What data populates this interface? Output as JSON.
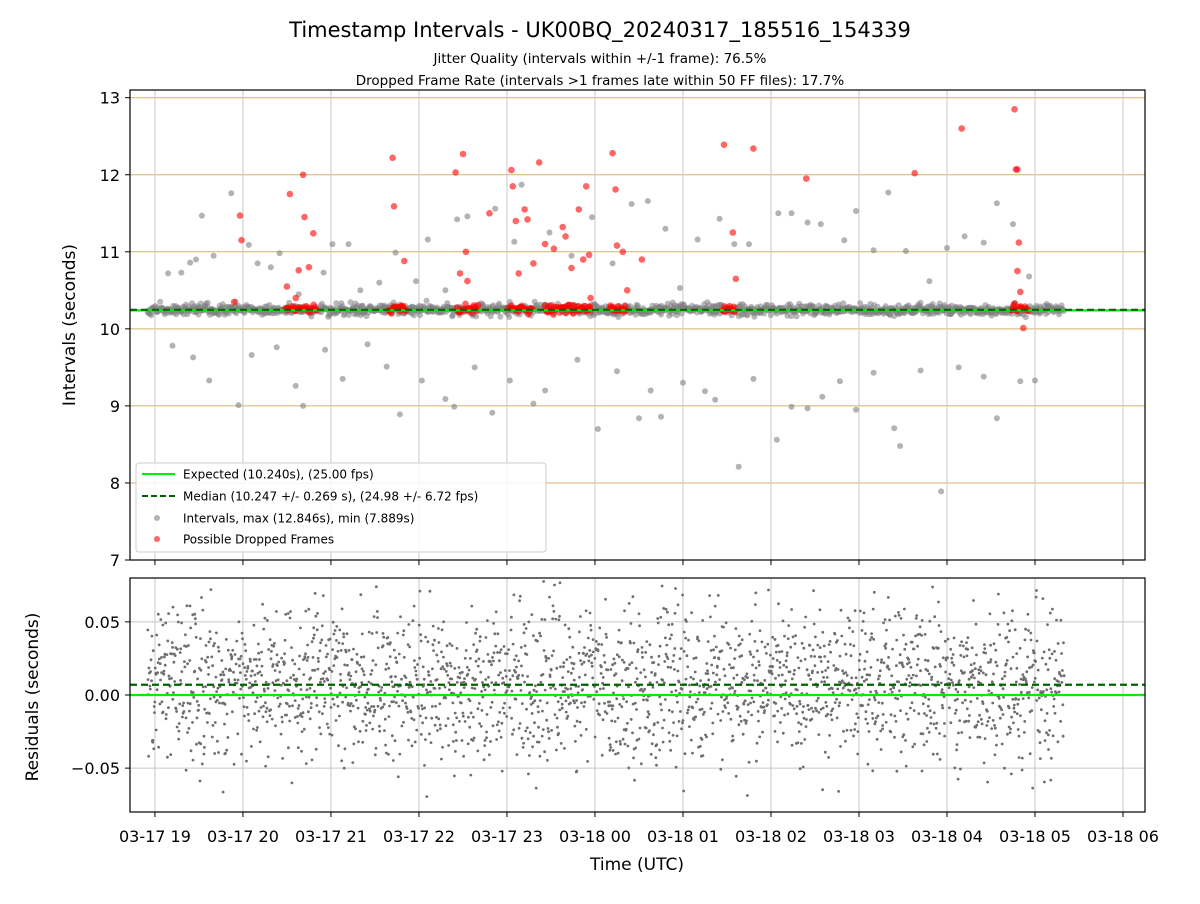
{
  "figure": {
    "title": "Timestamp Intervals - UK00BQ_20240317_185516_154339",
    "subtitle_1": "Jitter Quality (intervals within +/-1 frame): 76.5%",
    "subtitle_2": "Dropped Frame Rate (intervals >1 frames late within 50 FF files): 17.7%"
  },
  "colors": {
    "expected": "#00ee00",
    "median": "#006400",
    "intervals": "#808080",
    "dropped": "#ff0000",
    "frame_grid": "#d4b36a",
    "grid": "#c8c8c8"
  },
  "chart_data": [
    {
      "type": "scatter",
      "ylabel": "Intervals (seconds)",
      "ylim": [
        7,
        13.1
      ],
      "y_ticks": [
        7,
        8,
        9,
        10,
        11,
        12,
        13
      ],
      "xlim": [
        "2024-03-17T18:43",
        "2024-03-18T06:15"
      ],
      "grid": true,
      "legend_position": "lower-left",
      "expected_interval": 10.24,
      "median_interval": 10.247,
      "legend": [
        {
          "label": "Expected (10.240s), (25.00 fps)",
          "style": "solid-line",
          "color": "#00ee00"
        },
        {
          "label": "Median (10.247 +/- 0.269 s), (24.98 +/- 6.72 fps)",
          "style": "dashed-line",
          "color": "#006400"
        },
        {
          "label": "Intervals, max (12.846s), min (7.889s)",
          "style": "dot",
          "color": "#808080"
        },
        {
          "label": "Possible Dropped Frames",
          "style": "dot",
          "color": "#ff0000"
        }
      ],
      "series": [
        {
          "name": "Intervals, max (12.846s), min (7.889s)",
          "outliers": [
            {
              "x": "2024-03-17T19:09",
              "y": 10.72
            },
            {
              "x": "2024-03-17T19:18",
              "y": 10.73
            },
            {
              "x": "2024-03-17T19:24",
              "y": 10.86
            },
            {
              "x": "2024-03-17T19:28",
              "y": 10.9
            },
            {
              "x": "2024-03-17T19:32",
              "y": 11.47
            },
            {
              "x": "2024-03-17T19:40",
              "y": 10.95
            },
            {
              "x": "2024-03-17T19:52",
              "y": 11.76
            },
            {
              "x": "2024-03-17T19:55",
              "y": 10.35
            },
            {
              "x": "2024-03-17T20:04",
              "y": 11.09
            },
            {
              "x": "2024-03-17T20:10",
              "y": 10.85
            },
            {
              "x": "2024-03-17T20:19",
              "y": 10.8
            },
            {
              "x": "2024-03-17T20:25",
              "y": 10.98
            },
            {
              "x": "2024-03-17T20:38",
              "y": 10.45
            },
            {
              "x": "2024-03-17T20:55",
              "y": 10.73
            },
            {
              "x": "2024-03-17T21:01",
              "y": 11.1
            },
            {
              "x": "2024-03-17T21:12",
              "y": 11.1
            },
            {
              "x": "2024-03-17T21:20",
              "y": 10.5
            },
            {
              "x": "2024-03-17T21:33",
              "y": 10.6
            },
            {
              "x": "2024-03-17T21:44",
              "y": 10.99
            },
            {
              "x": "2024-03-17T21:58",
              "y": 10.62
            },
            {
              "x": "2024-03-17T22:06",
              "y": 11.16
            },
            {
              "x": "2024-03-17T22:18",
              "y": 10.5
            },
            {
              "x": "2024-03-17T22:26",
              "y": 11.42
            },
            {
              "x": "2024-03-17T22:33",
              "y": 11.46
            },
            {
              "x": "2024-03-17T22:52",
              "y": 11.56
            },
            {
              "x": "2024-03-17T23:05",
              "y": 11.13
            },
            {
              "x": "2024-03-17T23:10",
              "y": 11.87
            },
            {
              "x": "2024-03-17T23:29",
              "y": 11.25
            },
            {
              "x": "2024-03-17T23:44",
              "y": 10.95
            },
            {
              "x": "2024-03-17T23:58",
              "y": 11.45
            },
            {
              "x": "2024-03-18T00:12",
              "y": 10.85
            },
            {
              "x": "2024-03-18T00:25",
              "y": 11.62
            },
            {
              "x": "2024-03-18T00:36",
              "y": 11.66
            },
            {
              "x": "2024-03-18T00:48",
              "y": 11.3
            },
            {
              "x": "2024-03-18T00:58",
              "y": 10.53
            },
            {
              "x": "2024-03-18T01:10",
              "y": 11.16
            },
            {
              "x": "2024-03-18T01:25",
              "y": 11.43
            },
            {
              "x": "2024-03-18T01:35",
              "y": 11.1
            },
            {
              "x": "2024-03-18T01:45",
              "y": 11.1
            },
            {
              "x": "2024-03-18T02:05",
              "y": 11.5
            },
            {
              "x": "2024-03-18T02:14",
              "y": 11.5
            },
            {
              "x": "2024-03-18T02:25",
              "y": 11.38
            },
            {
              "x": "2024-03-18T02:34",
              "y": 11.36
            },
            {
              "x": "2024-03-18T02:50",
              "y": 11.15
            },
            {
              "x": "2024-03-18T02:58",
              "y": 11.53
            },
            {
              "x": "2024-03-18T03:10",
              "y": 11.02
            },
            {
              "x": "2024-03-18T03:20",
              "y": 11.77
            },
            {
              "x": "2024-03-18T03:32",
              "y": 11.01
            },
            {
              "x": "2024-03-18T03:48",
              "y": 10.62
            },
            {
              "x": "2024-03-18T04:00",
              "y": 11.05
            },
            {
              "x": "2024-03-18T04:12",
              "y": 11.2
            },
            {
              "x": "2024-03-18T04:25",
              "y": 11.12
            },
            {
              "x": "2024-03-18T04:34",
              "y": 11.63
            },
            {
              "x": "2024-03-18T04:45",
              "y": 11.36
            },
            {
              "x": "2024-03-18T04:56",
              "y": 10.68
            },
            {
              "x": "2024-03-17T19:12",
              "y": 9.78
            },
            {
              "x": "2024-03-17T19:26",
              "y": 9.63
            },
            {
              "x": "2024-03-17T19:37",
              "y": 9.33
            },
            {
              "x": "2024-03-17T19:57",
              "y": 9.01
            },
            {
              "x": "2024-03-17T20:06",
              "y": 9.66
            },
            {
              "x": "2024-03-17T20:23",
              "y": 9.76
            },
            {
              "x": "2024-03-17T20:36",
              "y": 9.26
            },
            {
              "x": "2024-03-17T20:41",
              "y": 9.0
            },
            {
              "x": "2024-03-17T20:56",
              "y": 9.73
            },
            {
              "x": "2024-03-17T21:08",
              "y": 9.35
            },
            {
              "x": "2024-03-17T21:25",
              "y": 9.8
            },
            {
              "x": "2024-03-17T21:38",
              "y": 9.51
            },
            {
              "x": "2024-03-17T21:47",
              "y": 8.89
            },
            {
              "x": "2024-03-17T22:02",
              "y": 9.33
            },
            {
              "x": "2024-03-17T22:18",
              "y": 9.09
            },
            {
              "x": "2024-03-17T22:24",
              "y": 8.99
            },
            {
              "x": "2024-03-17T22:38",
              "y": 9.5
            },
            {
              "x": "2024-03-17T22:50",
              "y": 8.91
            },
            {
              "x": "2024-03-17T23:02",
              "y": 9.33
            },
            {
              "x": "2024-03-17T23:18",
              "y": 9.03
            },
            {
              "x": "2024-03-17T23:26",
              "y": 9.2
            },
            {
              "x": "2024-03-17T23:48",
              "y": 9.6
            },
            {
              "x": "2024-03-18T00:02",
              "y": 8.7
            },
            {
              "x": "2024-03-18T00:15",
              "y": 9.45
            },
            {
              "x": "2024-03-18T00:30",
              "y": 8.84
            },
            {
              "x": "2024-03-18T00:38",
              "y": 9.2
            },
            {
              "x": "2024-03-18T00:45",
              "y": 8.86
            },
            {
              "x": "2024-03-18T01:00",
              "y": 9.3
            },
            {
              "x": "2024-03-18T01:15",
              "y": 9.19
            },
            {
              "x": "2024-03-18T01:22",
              "y": 9.08
            },
            {
              "x": "2024-03-18T01:38",
              "y": 8.21
            },
            {
              "x": "2024-03-18T01:48",
              "y": 9.35
            },
            {
              "x": "2024-03-18T02:04",
              "y": 8.56
            },
            {
              "x": "2024-03-18T02:14",
              "y": 8.99
            },
            {
              "x": "2024-03-18T02:25",
              "y": 8.97
            },
            {
              "x": "2024-03-18T02:35",
              "y": 9.12
            },
            {
              "x": "2024-03-18T02:47",
              "y": 9.32
            },
            {
              "x": "2024-03-18T02:58",
              "y": 8.95
            },
            {
              "x": "2024-03-18T03:10",
              "y": 9.43
            },
            {
              "x": "2024-03-18T03:24",
              "y": 8.71
            },
            {
              "x": "2024-03-18T03:28",
              "y": 8.48
            },
            {
              "x": "2024-03-18T03:42",
              "y": 9.46
            },
            {
              "x": "2024-03-18T03:56",
              "y": 7.89
            },
            {
              "x": "2024-03-18T04:08",
              "y": 9.5
            },
            {
              "x": "2024-03-18T04:25",
              "y": 9.38
            },
            {
              "x": "2024-03-18T04:34",
              "y": 8.84
            },
            {
              "x": "2024-03-18T04:50",
              "y": 9.32
            },
            {
              "x": "2024-03-18T05:00",
              "y": 9.33
            }
          ]
        },
        {
          "name": "Possible Dropped Frames",
          "points": [
            {
              "x": "2024-03-17T19:54",
              "y": 10.35
            },
            {
              "x": "2024-03-17T19:59",
              "y": 11.15
            },
            {
              "x": "2024-03-17T19:58",
              "y": 11.47
            },
            {
              "x": "2024-03-17T20:30",
              "y": 10.55
            },
            {
              "x": "2024-03-17T20:32",
              "y": 11.75
            },
            {
              "x": "2024-03-17T20:36",
              "y": 10.4
            },
            {
              "x": "2024-03-17T20:38",
              "y": 10.76
            },
            {
              "x": "2024-03-17T20:41",
              "y": 12.0
            },
            {
              "x": "2024-03-17T20:42",
              "y": 11.45
            },
            {
              "x": "2024-03-17T20:45",
              "y": 10.8
            },
            {
              "x": "2024-03-17T20:48",
              "y": 11.24
            },
            {
              "x": "2024-03-17T21:42",
              "y": 12.22
            },
            {
              "x": "2024-03-17T21:43",
              "y": 11.59
            },
            {
              "x": "2024-03-17T21:50",
              "y": 10.88
            },
            {
              "x": "2024-03-17T22:25",
              "y": 12.03
            },
            {
              "x": "2024-03-17T22:28",
              "y": 10.72
            },
            {
              "x": "2024-03-17T22:30",
              "y": 12.27
            },
            {
              "x": "2024-03-17T22:32",
              "y": 11.0
            },
            {
              "x": "2024-03-17T22:33",
              "y": 10.62
            },
            {
              "x": "2024-03-17T22:48",
              "y": 11.5
            },
            {
              "x": "2024-03-17T23:03",
              "y": 12.06
            },
            {
              "x": "2024-03-17T23:04",
              "y": 11.85
            },
            {
              "x": "2024-03-17T23:06",
              "y": 11.4
            },
            {
              "x": "2024-03-17T23:08",
              "y": 10.72
            },
            {
              "x": "2024-03-17T23:12",
              "y": 11.55
            },
            {
              "x": "2024-03-17T23:14",
              "y": 11.42
            },
            {
              "x": "2024-03-17T23:18",
              "y": 10.85
            },
            {
              "x": "2024-03-17T23:22",
              "y": 12.16
            },
            {
              "x": "2024-03-17T23:26",
              "y": 11.1
            },
            {
              "x": "2024-03-17T23:32",
              "y": 11.04
            },
            {
              "x": "2024-03-17T23:38",
              "y": 11.32
            },
            {
              "x": "2024-03-17T23:40",
              "y": 11.2
            },
            {
              "x": "2024-03-17T23:44",
              "y": 10.79
            },
            {
              "x": "2024-03-17T23:49",
              "y": 11.55
            },
            {
              "x": "2024-03-17T23:52",
              "y": 10.9
            },
            {
              "x": "2024-03-17T23:54",
              "y": 11.85
            },
            {
              "x": "2024-03-17T23:56",
              "y": 10.96
            },
            {
              "x": "2024-03-17T23:57",
              "y": 10.4
            },
            {
              "x": "2024-03-18T00:12",
              "y": 12.28
            },
            {
              "x": "2024-03-18T00:14",
              "y": 11.81
            },
            {
              "x": "2024-03-18T00:15",
              "y": 11.08
            },
            {
              "x": "2024-03-18T00:19",
              "y": 11.0
            },
            {
              "x": "2024-03-18T00:22",
              "y": 10.5
            },
            {
              "x": "2024-03-18T00:32",
              "y": 10.9
            },
            {
              "x": "2024-03-18T01:28",
              "y": 12.39
            },
            {
              "x": "2024-03-18T01:34",
              "y": 11.25
            },
            {
              "x": "2024-03-18T01:36",
              "y": 10.65
            },
            {
              "x": "2024-03-18T01:48",
              "y": 12.34
            },
            {
              "x": "2024-03-18T02:24",
              "y": 11.95
            },
            {
              "x": "2024-03-18T03:38",
              "y": 12.02
            },
            {
              "x": "2024-03-18T04:10",
              "y": 12.6
            },
            {
              "x": "2024-03-18T04:46",
              "y": 12.85
            },
            {
              "x": "2024-03-18T04:47",
              "y": 12.07
            },
            {
              "x": "2024-03-18T04:48",
              "y": 12.07
            },
            {
              "x": "2024-03-18T04:49",
              "y": 11.12
            },
            {
              "x": "2024-03-18T04:48",
              "y": 10.75
            },
            {
              "x": "2024-03-18T04:50",
              "y": 10.48
            },
            {
              "x": "2024-03-18T04:52",
              "y": 10.01
            }
          ],
          "clusters_at_y": 10.26,
          "cluster_ranges": [
            [
              "2024-03-17T20:29",
              "2024-03-17T20:51"
            ],
            [
              "2024-03-17T21:39",
              "2024-03-17T21:52"
            ],
            [
              "2024-03-17T22:26",
              "2024-03-17T22:41"
            ],
            [
              "2024-03-17T23:01",
              "2024-03-17T23:18"
            ],
            [
              "2024-03-17T23:26",
              "2024-03-17T23:58"
            ],
            [
              "2024-03-18T00:10",
              "2024-03-18T00:22"
            ],
            [
              "2024-03-18T01:27",
              "2024-03-18T01:36"
            ],
            [
              "2024-03-18T04:44",
              "2024-03-18T04:56"
            ]
          ]
        }
      ]
    },
    {
      "type": "scatter",
      "ylabel": "Residuals (seconds)",
      "xlabel": "Time (UTC)",
      "ylim": [
        -0.08,
        0.08
      ],
      "y_ticks": [
        {
          "value": 0.05,
          "label": "0.05"
        },
        {
          "value": 0.0,
          "label": "0.00"
        },
        {
          "value": -0.05,
          "label": "−0.05"
        }
      ],
      "x_ticks": [
        {
          "value": "2024-03-17T19:00",
          "label": "03-17 19"
        },
        {
          "value": "2024-03-17T20:00",
          "label": "03-17 20"
        },
        {
          "value": "2024-03-17T21:00",
          "label": "03-17 21"
        },
        {
          "value": "2024-03-17T22:00",
          "label": "03-17 22"
        },
        {
          "value": "2024-03-17T23:00",
          "label": "03-17 23"
        },
        {
          "value": "2024-03-18T00:00",
          "label": "03-18 00"
        },
        {
          "value": "2024-03-18T01:00",
          "label": "03-18 01"
        },
        {
          "value": "2024-03-18T02:00",
          "label": "03-18 02"
        },
        {
          "value": "2024-03-18T03:00",
          "label": "03-18 03"
        },
        {
          "value": "2024-03-18T04:00",
          "label": "03-18 04"
        },
        {
          "value": "2024-03-18T05:00",
          "label": "03-18 05"
        },
        {
          "value": "2024-03-18T06:00",
          "label": "03-18 06"
        }
      ],
      "expected_line": 0.0,
      "median_line": 0.007,
      "grid": true,
      "residuals_range": [
        "2024-03-17T18:55",
        "2024-03-18T05:20"
      ]
    }
  ]
}
